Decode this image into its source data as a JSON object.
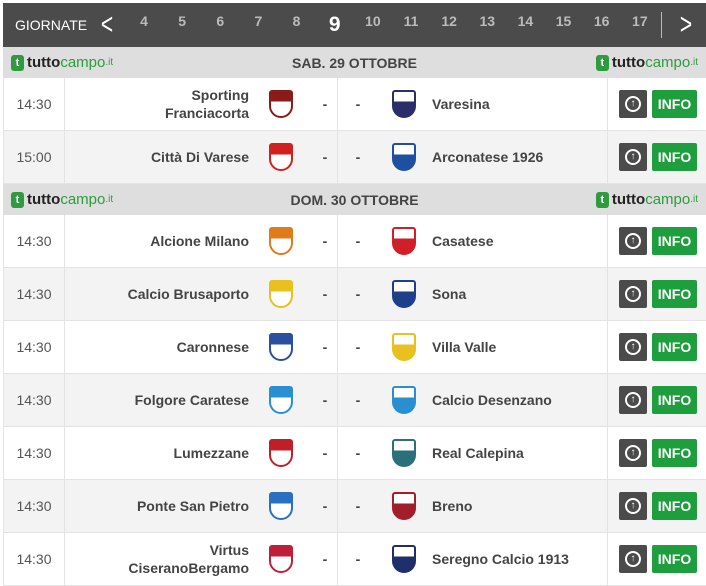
{
  "nav": {
    "label": "GIORNATE",
    "days": [
      "4",
      "5",
      "6",
      "7",
      "8",
      "9",
      "10",
      "11",
      "12",
      "13",
      "14",
      "15",
      "16",
      "17"
    ],
    "active": "9"
  },
  "brand": {
    "name_a": "tutto",
    "name_b": "campo",
    "tld": ".it",
    "icon": "t"
  },
  "colors": {
    "accent": "#1f9e3e",
    "header": "#4b4b4b"
  },
  "sections": [
    {
      "date": "SAB. 29 OTTOBRE",
      "matches": [
        {
          "time": "14:30",
          "home": "Sporting Franciacorta",
          "away": "Varesina",
          "hc": "#8b1a1a",
          "ac": "#2a2f6b"
        },
        {
          "time": "15:00",
          "home": "Città Di Varese",
          "away": "Arconatese 1926",
          "hc": "#d12020",
          "ac": "#1e4fa0"
        }
      ]
    },
    {
      "date": "DOM. 30 OTTOBRE",
      "matches": [
        {
          "time": "14:30",
          "home": "Alcione Milano",
          "away": "Casatese",
          "hc": "#e07a1a",
          "ac": "#d11f2a"
        },
        {
          "time": "14:30",
          "home": "Calcio Brusaporto",
          "away": "Sona",
          "hc": "#e8c020",
          "ac": "#1e3f8a"
        },
        {
          "time": "14:30",
          "home": "Caronnese",
          "away": "Villa Valle",
          "hc": "#2a4fa0",
          "ac": "#e8c020"
        },
        {
          "time": "14:30",
          "home": "Folgore Caratese",
          "away": "Calcio Desenzano",
          "hc": "#2a8fd0",
          "ac": "#2a8fd0"
        },
        {
          "time": "14:30",
          "home": "Lumezzane",
          "away": "Real Calepina",
          "hc": "#c01f2a",
          "ac": "#2a6f7a"
        },
        {
          "time": "14:30",
          "home": "Ponte San Pietro",
          "away": "Breno",
          "hc": "#2a6fc0",
          "ac": "#a01f2a"
        },
        {
          "time": "14:30",
          "home": "Virtus CiseranoBergamo",
          "away": "Seregno Calcio 1913",
          "hc": "#c01f3a",
          "ac": "#1e2f6a"
        }
      ]
    }
  ],
  "labels": {
    "dash": "-",
    "info": "INFO"
  }
}
